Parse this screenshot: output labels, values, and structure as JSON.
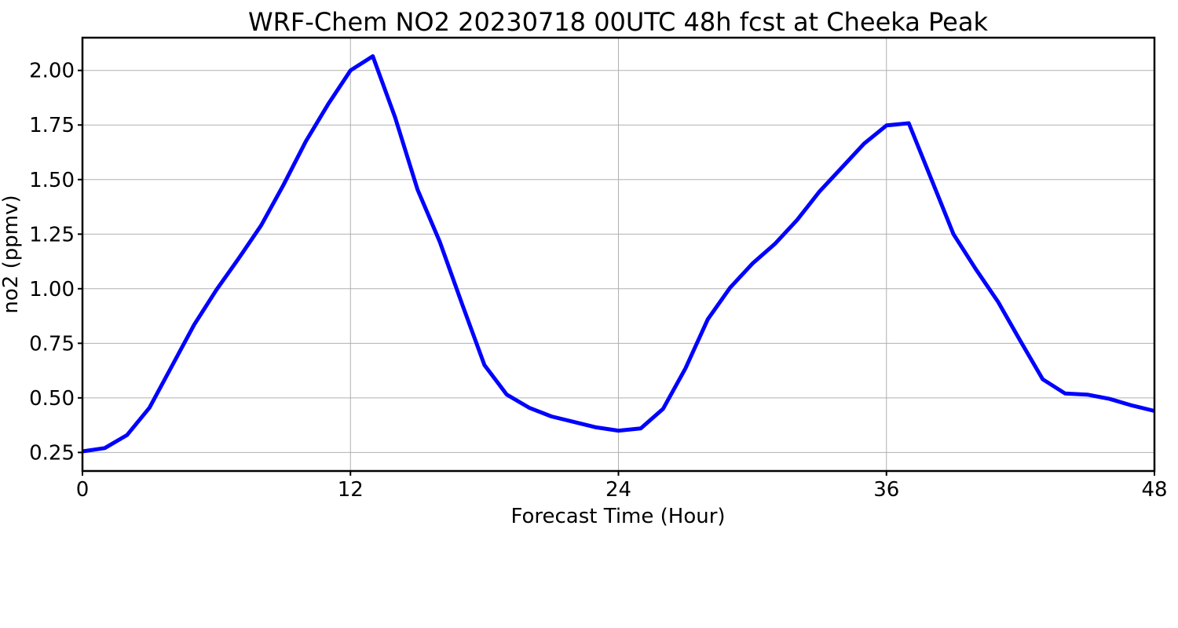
{
  "chart_data": {
    "type": "line",
    "title": "WRF-Chem NO2  20230718 00UTC 48h fcst at Cheeka Peak",
    "xlabel": "Forecast Time (Hour)",
    "ylabel": "no2  (ppmv)",
    "xlim": [
      0,
      48
    ],
    "ylim": [
      0.165,
      2.15
    ],
    "x_ticks": [
      0,
      12,
      24,
      36,
      48
    ],
    "y_ticks": [
      0.25,
      0.5,
      0.75,
      1.0,
      1.25,
      1.5,
      1.75,
      2.0
    ],
    "y_tick_labels": [
      "0.25",
      "0.50",
      "0.75",
      "1.00",
      "1.25",
      "1.50",
      "1.75",
      "2.00"
    ],
    "grid": true,
    "series": [
      {
        "color": "#0000ff",
        "x": [
          0,
          1,
          2,
          3,
          4,
          5,
          6,
          7,
          8,
          9,
          10,
          11,
          12,
          13,
          14,
          15,
          16,
          17,
          18,
          19,
          20,
          21,
          22,
          23,
          24,
          25,
          26,
          27,
          28,
          29,
          30,
          31,
          32,
          33,
          34,
          35,
          36,
          37,
          38,
          39,
          40,
          41,
          42,
          43,
          44,
          45,
          46,
          47,
          48
        ],
        "y": [
          0.255,
          0.27,
          0.33,
          0.455,
          0.645,
          0.835,
          0.995,
          1.14,
          1.29,
          1.475,
          1.675,
          1.845,
          2.0,
          2.065,
          1.785,
          1.455,
          1.215,
          0.93,
          0.65,
          0.515,
          0.455,
          0.415,
          0.39,
          0.365,
          0.35,
          0.36,
          0.45,
          0.635,
          0.86,
          1.005,
          1.115,
          1.205,
          1.315,
          1.445,
          1.555,
          1.665,
          1.748,
          1.758,
          1.505,
          1.25,
          1.09,
          0.94,
          0.76,
          0.585,
          0.52,
          0.515,
          0.495,
          0.465,
          0.44
        ]
      }
    ]
  }
}
